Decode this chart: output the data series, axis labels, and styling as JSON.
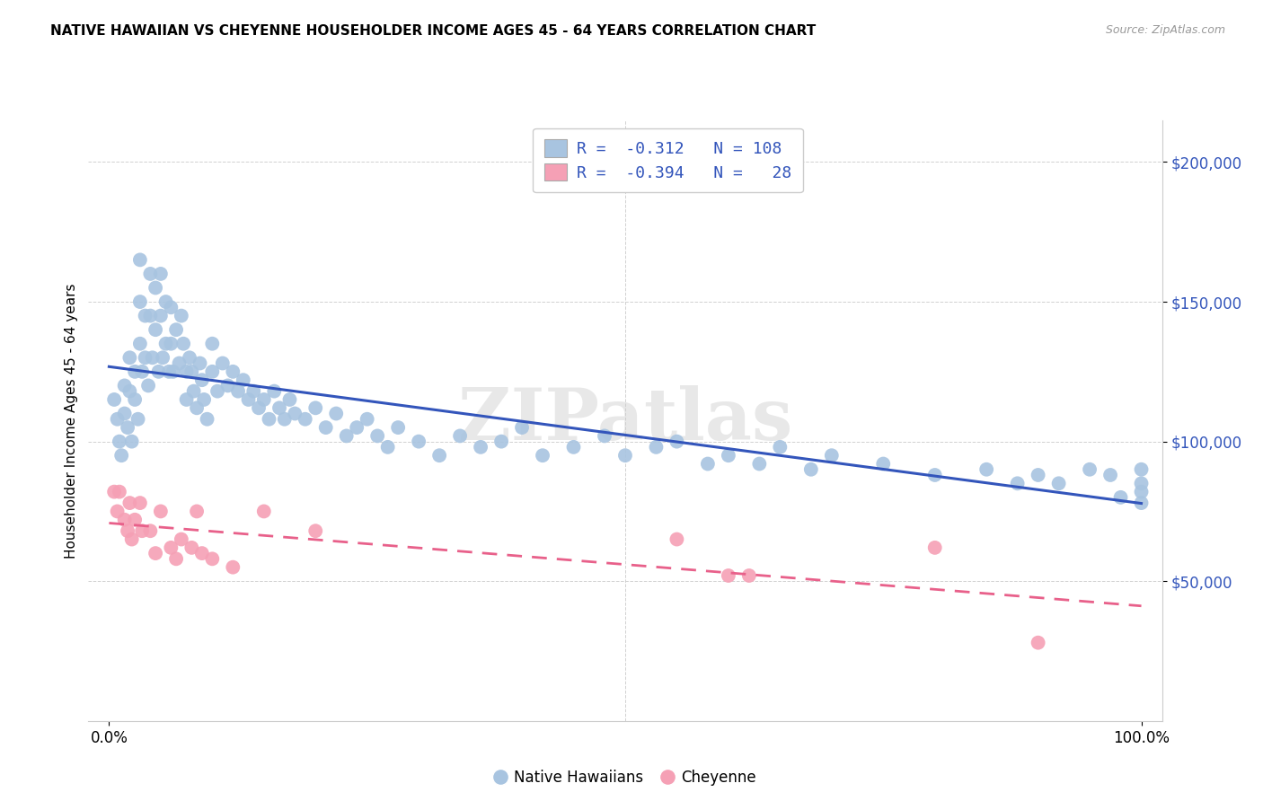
{
  "title": "NATIVE HAWAIIAN VS CHEYENNE HOUSEHOLDER INCOME AGES 45 - 64 YEARS CORRELATION CHART",
  "source": "Source: ZipAtlas.com",
  "ylabel": "Householder Income Ages 45 - 64 years",
  "ytick_labels": [
    "$50,000",
    "$100,000",
    "$150,000",
    "$200,000"
  ],
  "ytick_values": [
    50000,
    100000,
    150000,
    200000
  ],
  "ymin": 0,
  "ymax": 215000,
  "xmin": 0.0,
  "xmax": 1.0,
  "r_hawaiian": -0.312,
  "n_hawaiian": 108,
  "r_cheyenne": -0.394,
  "n_cheyenne": 28,
  "hawaiian_color": "#a8c4e0",
  "cheyenne_color": "#f5a0b5",
  "hawaiian_line_color": "#3355bb",
  "cheyenne_line_color": "#e8608a",
  "watermark": "ZIPatlas",
  "background_color": "#ffffff",
  "hawaiian_x": [
    0.005,
    0.008,
    0.01,
    0.012,
    0.015,
    0.015,
    0.018,
    0.02,
    0.02,
    0.022,
    0.025,
    0.025,
    0.028,
    0.03,
    0.03,
    0.03,
    0.032,
    0.035,
    0.035,
    0.038,
    0.04,
    0.04,
    0.042,
    0.045,
    0.045,
    0.048,
    0.05,
    0.05,
    0.052,
    0.055,
    0.055,
    0.058,
    0.06,
    0.06,
    0.062,
    0.065,
    0.068,
    0.07,
    0.072,
    0.075,
    0.075,
    0.078,
    0.08,
    0.082,
    0.085,
    0.088,
    0.09,
    0.092,
    0.095,
    0.1,
    0.1,
    0.105,
    0.11,
    0.115,
    0.12,
    0.125,
    0.13,
    0.135,
    0.14,
    0.145,
    0.15,
    0.155,
    0.16,
    0.165,
    0.17,
    0.175,
    0.18,
    0.19,
    0.2,
    0.21,
    0.22,
    0.23,
    0.24,
    0.25,
    0.26,
    0.27,
    0.28,
    0.3,
    0.32,
    0.34,
    0.36,
    0.38,
    0.4,
    0.42,
    0.45,
    0.48,
    0.5,
    0.53,
    0.55,
    0.58,
    0.6,
    0.63,
    0.65,
    0.68,
    0.7,
    0.75,
    0.8,
    0.85,
    0.88,
    0.9,
    0.92,
    0.95,
    0.97,
    0.98,
    1.0,
    1.0,
    1.0,
    1.0
  ],
  "hawaiian_y": [
    115000,
    108000,
    100000,
    95000,
    120000,
    110000,
    105000,
    130000,
    118000,
    100000,
    125000,
    115000,
    108000,
    165000,
    150000,
    135000,
    125000,
    145000,
    130000,
    120000,
    160000,
    145000,
    130000,
    155000,
    140000,
    125000,
    160000,
    145000,
    130000,
    150000,
    135000,
    125000,
    148000,
    135000,
    125000,
    140000,
    128000,
    145000,
    135000,
    125000,
    115000,
    130000,
    125000,
    118000,
    112000,
    128000,
    122000,
    115000,
    108000,
    135000,
    125000,
    118000,
    128000,
    120000,
    125000,
    118000,
    122000,
    115000,
    118000,
    112000,
    115000,
    108000,
    118000,
    112000,
    108000,
    115000,
    110000,
    108000,
    112000,
    105000,
    110000,
    102000,
    105000,
    108000,
    102000,
    98000,
    105000,
    100000,
    95000,
    102000,
    98000,
    100000,
    105000,
    95000,
    98000,
    102000,
    95000,
    98000,
    100000,
    92000,
    95000,
    92000,
    98000,
    90000,
    95000,
    92000,
    88000,
    90000,
    85000,
    88000,
    85000,
    90000,
    88000,
    80000,
    90000,
    85000,
    82000,
    78000
  ],
  "cheyenne_x": [
    0.005,
    0.008,
    0.01,
    0.015,
    0.018,
    0.02,
    0.022,
    0.025,
    0.03,
    0.032,
    0.04,
    0.045,
    0.05,
    0.06,
    0.065,
    0.07,
    0.08,
    0.085,
    0.09,
    0.1,
    0.12,
    0.15,
    0.2,
    0.55,
    0.6,
    0.62,
    0.8,
    0.9
  ],
  "cheyenne_y": [
    82000,
    75000,
    82000,
    72000,
    68000,
    78000,
    65000,
    72000,
    78000,
    68000,
    68000,
    60000,
    75000,
    62000,
    58000,
    65000,
    62000,
    75000,
    60000,
    58000,
    55000,
    75000,
    68000,
    65000,
    52000,
    52000,
    62000,
    28000
  ]
}
